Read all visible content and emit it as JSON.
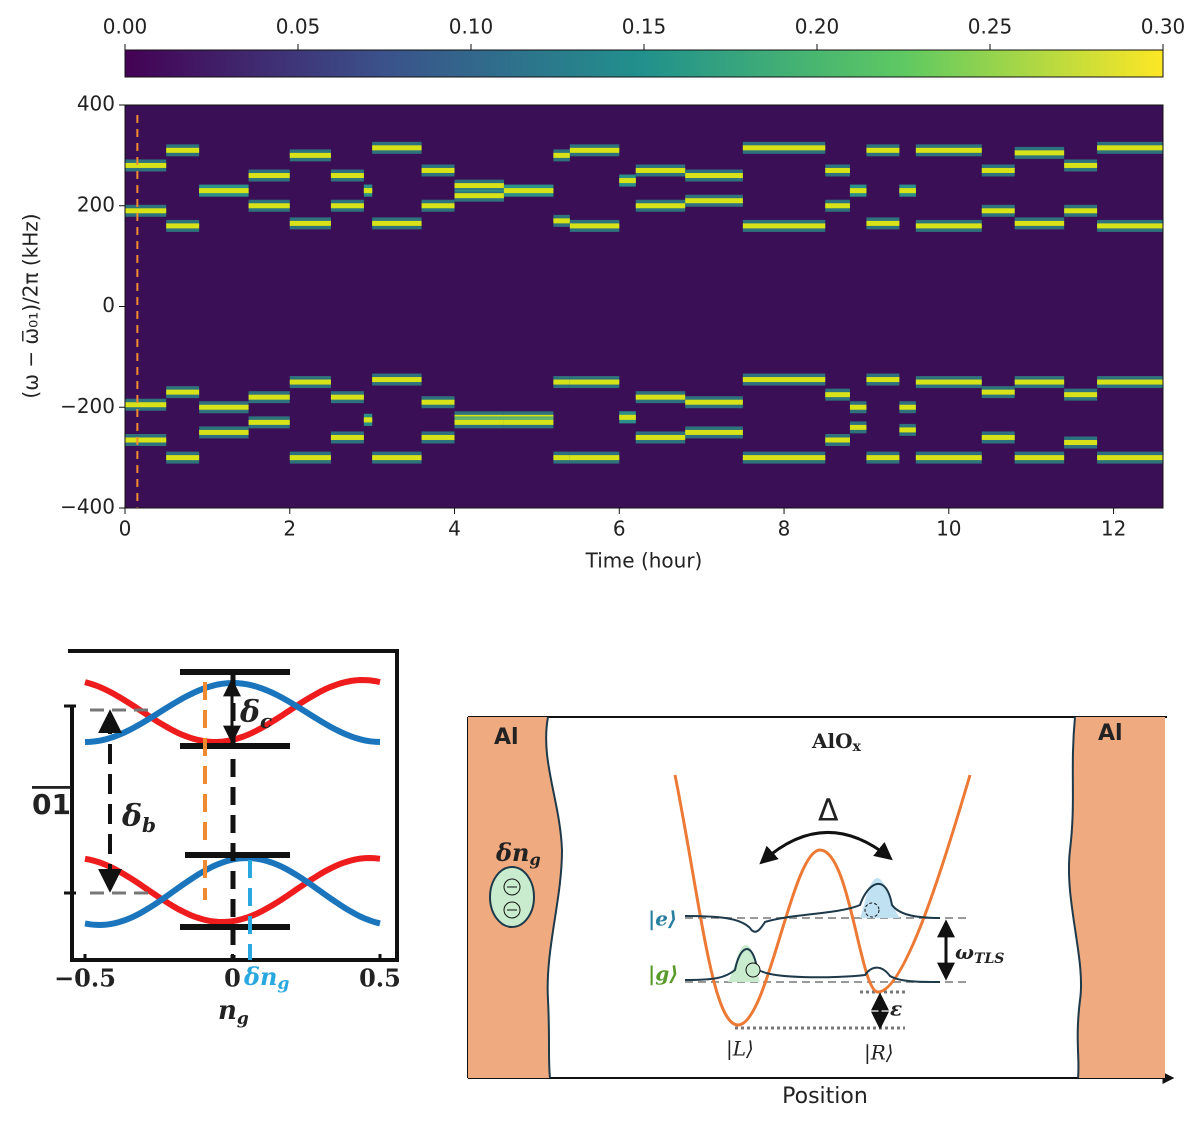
{
  "chart_data": [
    {
      "type": "heatmap",
      "xlabel": "Time (hour)",
      "ylabel": "(ω − ω̅₀₁)/2π (kHz)",
      "xlim": [
        0,
        12.6
      ],
      "ylim": [
        -400,
        400
      ],
      "xticks": [
        0,
        2,
        4,
        6,
        8,
        10,
        12
      ],
      "yticks": [
        {
          "value": -400,
          "label": "−400"
        },
        {
          "value": -200,
          "label": "−200"
        },
        0,
        200,
        400
      ],
      "clim": [
        0,
        0.3
      ],
      "cticks": [
        {
          "value": 0,
          "label": "0.00"
        },
        0.05,
        {
          "value": 0.1,
          "label": "0.10"
        },
        0.15,
        {
          "value": 0.2,
          "label": "0.20"
        },
        0.25,
        {
          "value": 0.3,
          "label": "0.30"
        }
      ],
      "colormap": [
        "#440154",
        "#3b528b",
        "#21918c",
        "#5ec962",
        "#fde725"
      ],
      "background": "#3b0f55",
      "trace_colors": [
        "#2a9d8f",
        "#d8e219"
      ],
      "marker_x": 0.15,
      "marker_color": "#f08a30",
      "traces": [
        {
          "x": [
            0,
            0.5
          ],
          "levels": [
            280,
            190,
            -195,
            -265
          ]
        },
        {
          "x": [
            0.5,
            0.9
          ],
          "levels": [
            310,
            160,
            -170,
            -300
          ]
        },
        {
          "x": [
            0.9,
            1.5
          ],
          "levels": [
            230,
            230,
            -200,
            -250
          ]
        },
        {
          "x": [
            1.5,
            2.0
          ],
          "levels": [
            260,
            200,
            -180,
            -230
          ]
        },
        {
          "x": [
            2.0,
            2.5
          ],
          "levels": [
            300,
            165,
            -150,
            -300
          ]
        },
        {
          "x": [
            2.5,
            2.9
          ],
          "levels": [
            260,
            200,
            -180,
            -260
          ]
        },
        {
          "x": [
            2.9,
            3.0
          ],
          "levels": [
            230,
            230,
            -225,
            -225
          ]
        },
        {
          "x": [
            3.0,
            3.6
          ],
          "levels": [
            315,
            165,
            -145,
            -300
          ]
        },
        {
          "x": [
            3.6,
            4.0
          ],
          "levels": [
            270,
            200,
            -190,
            -260
          ]
        },
        {
          "x": [
            4.0,
            4.6
          ],
          "levels": [
            240,
            220,
            -220,
            -230
          ]
        },
        {
          "x": [
            4.6,
            5.2
          ],
          "levels": [
            230,
            230,
            -220,
            -230
          ]
        },
        {
          "x": [
            5.2,
            5.4
          ],
          "levels": [
            300,
            170,
            -150,
            -300
          ]
        },
        {
          "x": [
            5.4,
            6.0
          ],
          "levels": [
            310,
            160,
            -150,
            -300
          ]
        },
        {
          "x": [
            6.0,
            6.2
          ],
          "levels": [
            250,
            250,
            -220,
            -220
          ]
        },
        {
          "x": [
            6.2,
            6.8
          ],
          "levels": [
            270,
            200,
            -180,
            -260
          ]
        },
        {
          "x": [
            6.8,
            7.5
          ],
          "levels": [
            260,
            210,
            -190,
            -250
          ]
        },
        {
          "x": [
            7.5,
            8.5
          ],
          "levels": [
            315,
            160,
            -145,
            -300
          ]
        },
        {
          "x": [
            8.5,
            8.8
          ],
          "levels": [
            270,
            200,
            -175,
            -265
          ]
        },
        {
          "x": [
            8.8,
            9.0
          ],
          "levels": [
            230,
            230,
            -200,
            -240
          ]
        },
        {
          "x": [
            9.0,
            9.4
          ],
          "levels": [
            310,
            165,
            -145,
            -300
          ]
        },
        {
          "x": [
            9.4,
            9.6
          ],
          "levels": [
            230,
            230,
            -200,
            -245
          ]
        },
        {
          "x": [
            9.6,
            10.4
          ],
          "levels": [
            310,
            160,
            -150,
            -300
          ]
        },
        {
          "x": [
            10.4,
            10.8
          ],
          "levels": [
            270,
            190,
            -170,
            -260
          ]
        },
        {
          "x": [
            10.8,
            11.4
          ],
          "levels": [
            305,
            165,
            -150,
            -300
          ]
        },
        {
          "x": [
            11.4,
            11.8
          ],
          "levels": [
            280,
            190,
            -175,
            -270
          ]
        },
        {
          "x": [
            11.8,
            12.6
          ],
          "levels": [
            315,
            160,
            -150,
            -300
          ]
        }
      ]
    },
    {
      "type": "band-diagram",
      "xlabel": [
        "n",
        "g"
      ],
      "ylabel": "01",
      "xlim": [
        -0.55,
        0.55
      ],
      "xticks": [
        {
          "value": -0.5,
          "label": "−0.5"
        },
        0,
        0.5
      ],
      "delta_c": [
        "δ",
        "c"
      ],
      "delta_b": [
        "δ",
        "b"
      ],
      "delta_ng": [
        "δn",
        "g"
      ]
    }
  ],
  "diagram": {
    "al_left": "Al",
    "al_right": "Al",
    "oxide": [
      "AlO",
      "x"
    ],
    "delta_ng": [
      "δn",
      "g"
    ],
    "tunneling": "Δ",
    "excited": "|e⟩",
    "ground": "|g⟩",
    "omega": [
      "ω",
      "TLS"
    ],
    "epsilon": "ε",
    "left_state": "|L⟩",
    "right_state": "|R⟩",
    "xlabel": "Position"
  }
}
